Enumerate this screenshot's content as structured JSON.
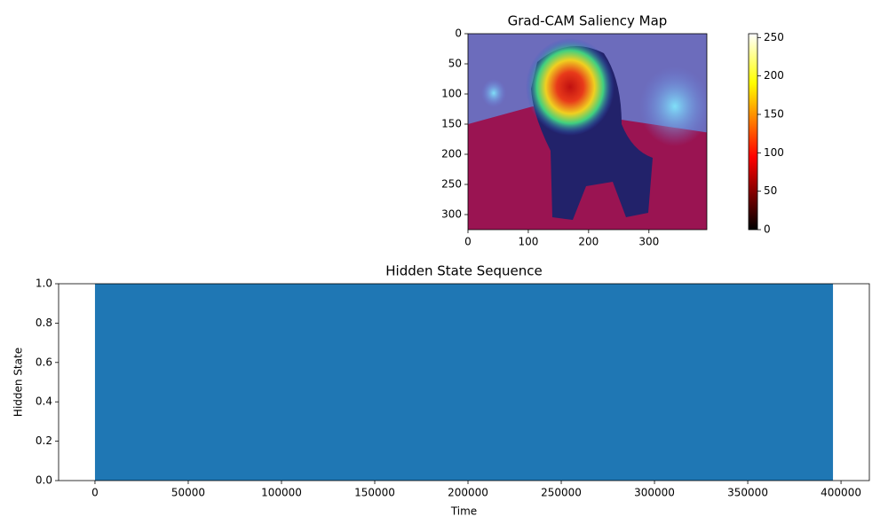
{
  "chart_data": [
    {
      "type": "image",
      "title": "Grad-CAM Saliency Map",
      "xlim": [
        0,
        396
      ],
      "ylim": [
        325,
        0
      ],
      "xticks": [
        0,
        100,
        200,
        300
      ],
      "yticks": [
        0,
        50,
        100,
        150,
        200,
        250,
        300
      ],
      "colormap": "hot",
      "clim": [
        0,
        255
      ],
      "cticks": [
        0,
        50,
        100,
        150,
        200,
        250
      ]
    },
    {
      "type": "area",
      "title": "Hidden State Sequence",
      "xlabel": "Time",
      "ylabel": "Hidden State",
      "x": [
        0,
        395700
      ],
      "series": [
        {
          "color": "#1f77b4",
          "values": [
            1,
            1
          ]
        }
      ],
      "xlim": [
        -19500,
        415200
      ],
      "ylim": [
        0,
        1
      ],
      "xticks": [
        0,
        50000,
        100000,
        150000,
        200000,
        250000,
        300000,
        350000,
        400000
      ],
      "yticks": [
        {
          "value": 0,
          "label": "0.0"
        },
        {
          "value": 0.2,
          "label": "0.2"
        },
        {
          "value": 0.4,
          "label": "0.4"
        },
        {
          "value": 0.6,
          "label": "0.6"
        },
        {
          "value": 0.8,
          "label": "0.8"
        },
        {
          "value": 1,
          "label": "1.0"
        }
      ]
    }
  ]
}
